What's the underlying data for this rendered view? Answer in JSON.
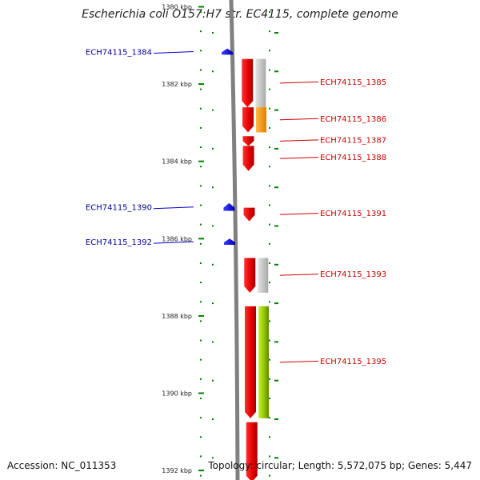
{
  "title": "Escherichia coli O157:H7 str. EC4115, complete genome",
  "footer": {
    "accession": "Accession: NC_011353",
    "summary": "Topology: circular; Length: 5,572,075 bp; Genes: 5,447"
  },
  "colors": {
    "minus_strand_gene": "#1010e0",
    "plus_strand_gene": "#e00000",
    "minus_label": "#000099",
    "plus_label": "#cc0000",
    "tick": "#008000",
    "backbone": "#808080",
    "orange_feature": "#ff9900",
    "green_feature": "#99cc00",
    "grey_feature": "#c8c8c8"
  },
  "scale": {
    "unit": "kbp",
    "ticks": [
      {
        "label": "1380 kbp",
        "kbp": 1380
      },
      {
        "label": "1382 kbp",
        "kbp": 1382
      },
      {
        "label": "1384 kbp",
        "kbp": 1384
      },
      {
        "label": "1386 kbp",
        "kbp": 1386
      },
      {
        "label": "1388 kbp",
        "kbp": 1388
      },
      {
        "label": "1390 kbp",
        "kbp": 1390
      },
      {
        "label": "1392 kbp",
        "kbp": 1392
      }
    ]
  },
  "minus_genes": [
    {
      "label": "ECH74115_1384",
      "start_kbp": 1381.08,
      "end_kbp": 1381.24
    },
    {
      "label": "ECH74115_1390",
      "start_kbp": 1385.08,
      "end_kbp": 1385.28
    },
    {
      "label": "ECH74115_1392",
      "start_kbp": 1386.0,
      "end_kbp": 1386.16
    }
  ],
  "plus_genes": [
    {
      "label": "ECH74115_1385",
      "start_kbp": 1381.35,
      "end_kbp": 1382.6
    },
    {
      "label": "ECH74115_1386",
      "start_kbp": 1382.6,
      "end_kbp": 1383.25
    },
    {
      "label": "ECH74115_1387",
      "start_kbp": 1383.35,
      "end_kbp": 1383.6
    },
    {
      "label": "ECH74115_1388",
      "start_kbp": 1383.6,
      "end_kbp": 1384.25
    },
    {
      "label": "ECH74115_1391",
      "start_kbp": 1385.2,
      "end_kbp": 1385.55
    },
    {
      "label": "ECH74115_1393",
      "start_kbp": 1386.5,
      "end_kbp": 1387.4
    },
    {
      "label": "ECH74115_1395",
      "start_kbp": 1387.75,
      "end_kbp": 1390.65
    },
    {
      "label": "",
      "start_kbp": 1390.75,
      "end_kbp": 1392.3
    }
  ],
  "inner_features": [
    {
      "color_key": "grey_feature",
      "start_kbp": 1381.35,
      "end_kbp": 1382.6
    },
    {
      "color_key": "orange_feature",
      "start_kbp": 1382.6,
      "end_kbp": 1383.25
    },
    {
      "color_key": "grey_feature",
      "start_kbp": 1386.5,
      "end_kbp": 1387.4
    },
    {
      "color_key": "green_feature",
      "start_kbp": 1387.75,
      "end_kbp": 1390.65
    }
  ]
}
